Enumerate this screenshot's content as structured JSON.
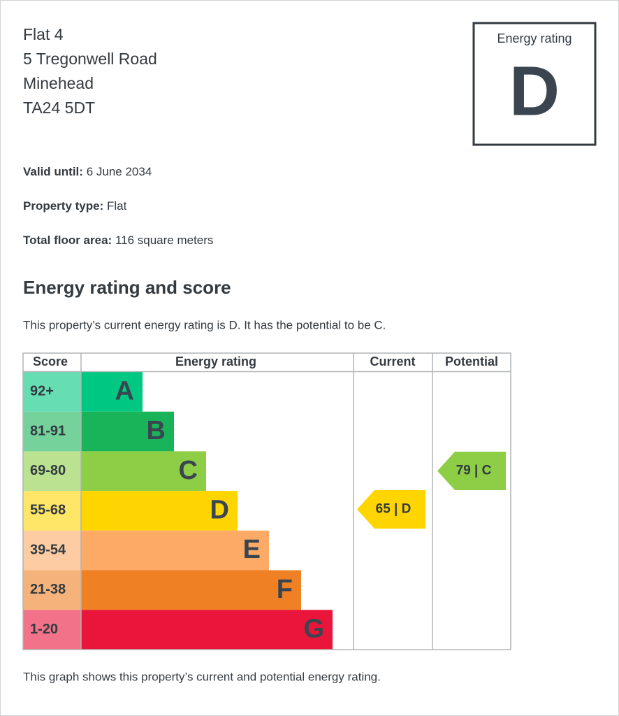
{
  "address": [
    "Flat 4",
    "5 Tregonwell Road",
    "Minehead",
    "TA24 5DT"
  ],
  "rating_box": {
    "label": "Energy rating",
    "rating": "D"
  },
  "details": [
    {
      "label": "Valid until:",
      "value": "6 June 2034"
    },
    {
      "label": "Property type:",
      "value": "Flat"
    },
    {
      "label": "Total floor area:",
      "value": "116 square meters"
    }
  ],
  "section_title": "Energy rating and score",
  "summary": "This property’s current energy rating is D. It has the potential to be C.",
  "table": {
    "headers": [
      "Score",
      "Energy rating",
      "Current",
      "Potential"
    ],
    "bands": [
      {
        "score": "92+",
        "letter": "A",
        "color": "#00c781"
      },
      {
        "score": "81-91",
        "letter": "B",
        "color": "#19b459"
      },
      {
        "score": "69-80",
        "letter": "C",
        "color": "#8dce46"
      },
      {
        "score": "55-68",
        "letter": "D",
        "color": "#ffd500"
      },
      {
        "score": "39-54",
        "letter": "E",
        "color": "#fcaa65"
      },
      {
        "score": "21-38",
        "letter": "F",
        "color": "#ef8023"
      },
      {
        "score": "1-20",
        "letter": "G",
        "color": "#e9153b"
      }
    ],
    "current": {
      "label": "65 | D",
      "color": "#ffd500"
    },
    "potential": {
      "label": "79 | C",
      "color": "#8dce46"
    }
  },
  "footnote": "This graph shows this property’s current and potential energy rating."
}
